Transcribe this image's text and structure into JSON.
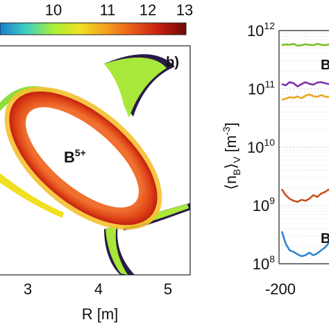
{
  "chart_data": [
    {
      "type": "heatmap",
      "panel_label": "b)",
      "colorbar": {
        "ticks": [
          "10",
          "11",
          "12",
          "13"
        ],
        "colors": [
          "#1a7fd0",
          "#3fd0c0",
          "#a8f03a",
          "#f0e020",
          "#f5a020",
          "#e85a18",
          "#c41e10",
          "#6e0a06"
        ]
      },
      "x_ticks": [
        "3",
        "4",
        "5"
      ],
      "xlabel": "R [m]",
      "annotation": {
        "base": "B",
        "sup": "5+"
      }
    },
    {
      "type": "line",
      "ylabel": {
        "prefix": "⟨n",
        "sub1": "B",
        "mid": "⟩",
        "sub2": "V",
        "unit": " [m",
        "unitsup": "-3",
        "close": "]"
      },
      "yscale": "log",
      "ylim": [
        100000000.0,
        1000000000000.0
      ],
      "y_ticks": [
        {
          "base": "10",
          "exp": "8",
          "value": 100000000.0
        },
        {
          "base": "10",
          "exp": "9",
          "value": 1000000000.0
        },
        {
          "base": "10",
          "exp": "10",
          "value": 10000000000.0
        },
        {
          "base": "10",
          "exp": "11",
          "value": 100000000000.0
        },
        {
          "base": "10",
          "exp": "12",
          "value": 1000000000000.0
        }
      ],
      "x_ticks": [
        "-200"
      ],
      "grid": true,
      "series": [
        {
          "color": "#7bbf2a",
          "x": [
            0,
            1,
            2,
            3,
            4,
            5,
            6,
            7,
            8,
            9,
            10,
            11,
            12
          ],
          "y": [
            560000000000.0,
            580000000000.0,
            570000000000.0,
            590000000000.0,
            550000000000.0,
            560000000000.0,
            580000000000.0,
            570000000000.0,
            560000000000.0,
            590000000000.0,
            570000000000.0,
            560000000000.0,
            580000000000.0
          ]
        },
        {
          "color": "#7e2fa8",
          "x": [
            0,
            1,
            2,
            3,
            4,
            5,
            6,
            7,
            8,
            9,
            10,
            11,
            12
          ],
          "y": [
            120000000000.0,
            115000000000.0,
            130000000000.0,
            125000000000.0,
            110000000000.0,
            120000000000.0,
            130000000000.0,
            122000000000.0,
            118000000000.0,
            128000000000.0,
            130000000000.0,
            125000000000.0,
            120000000000.0
          ]
        },
        {
          "color": "#e8a820",
          "x": [
            0,
            1,
            2,
            3,
            4,
            5,
            6,
            7,
            8,
            9,
            10,
            11,
            12
          ],
          "y": [
            65000000000.0,
            68000000000.0,
            72000000000.0,
            70000000000.0,
            74000000000.0,
            69000000000.0,
            76000000000.0,
            80000000000.0,
            75000000000.0,
            73000000000.0,
            78000000000.0,
            74000000000.0,
            72000000000.0
          ]
        },
        {
          "color": "#c8501a",
          "x": [
            0,
            1,
            2,
            3,
            4,
            5,
            6,
            7,
            8,
            9,
            10,
            11,
            12
          ],
          "y": [
            1900000000.0,
            1500000000.0,
            1300000000.0,
            1200000000.0,
            1150000000.0,
            1250000000.0,
            1200000000.0,
            1300000000.0,
            1500000000.0,
            1400000000.0,
            1600000000.0,
            1700000000.0,
            1900000000.0
          ]
        },
        {
          "color": "#2f86d0",
          "x": [
            0,
            1,
            2,
            3,
            4,
            5,
            6,
            7,
            8,
            9,
            10,
            11,
            12
          ],
          "y": [
            360000000.0,
            220000000.0,
            170000000.0,
            160000000.0,
            145000000.0,
            135000000.0,
            140000000.0,
            155000000.0,
            140000000.0,
            150000000.0,
            170000000.0,
            190000000.0,
            230000000.0
          ]
        }
      ],
      "partial_labels": [
        {
          "text": "B",
          "color": "#7bbf2a"
        },
        {
          "text": "B",
          "color": "#2f86d0"
        }
      ]
    }
  ]
}
